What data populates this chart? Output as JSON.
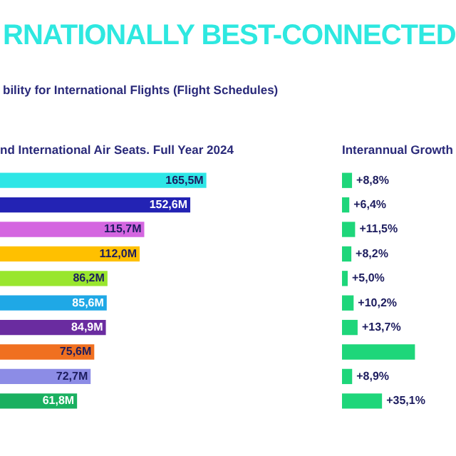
{
  "chart_data": [
    {
      "type": "bar",
      "orientation": "horizontal",
      "title": "RNATIONALLY BEST-CONNECTED",
      "subtitle": "bility for International Flights (Flight Schedules)",
      "annotations": [
        "nd International Air Seats. Full Year 2024"
      ],
      "categories": [
        null,
        null,
        null,
        null,
        null,
        null,
        null,
        null,
        null,
        null
      ],
      "values": [
        165.5,
        152.6,
        115.7,
        112.0,
        86.2,
        85.6,
        84.9,
        75.6,
        72.7,
        61.8
      ],
      "value_labels": [
        "165,5M",
        "152,6M",
        "115,7M",
        "112,0M",
        "86,2M",
        "85,6M",
        "84,9M",
        "75,6M",
        "72,7M",
        "61,8M"
      ],
      "colors": [
        "#2ee6e6",
        "#2323b4",
        "#d466e0",
        "#ffc000",
        "#99e62e",
        "#1fa8e6",
        "#6a2ca0",
        "#f07020",
        "#8c8ce6",
        "#1ab060"
      ],
      "tick_labels": false,
      "legend": false
    },
    {
      "type": "bar",
      "orientation": "horizontal",
      "title": "Interannual Growth",
      "categories": [
        null,
        null,
        null,
        null,
        null,
        null,
        null,
        null,
        null,
        null
      ],
      "values": [
        8.8,
        6.4,
        11.5,
        8.2,
        5.0,
        10.2,
        13.7,
        64,
        8.9,
        35.1
      ],
      "value_labels": [
        "+8,8%",
        "+6,4%",
        "+11,5%",
        "+8,2%",
        "+5,0%",
        "+10,2%",
        "+13,7%",
        null,
        "+8,9%",
        "+35,1%"
      ],
      "color": "#1ed67a",
      "tick_labels": false,
      "legend": false
    }
  ]
}
